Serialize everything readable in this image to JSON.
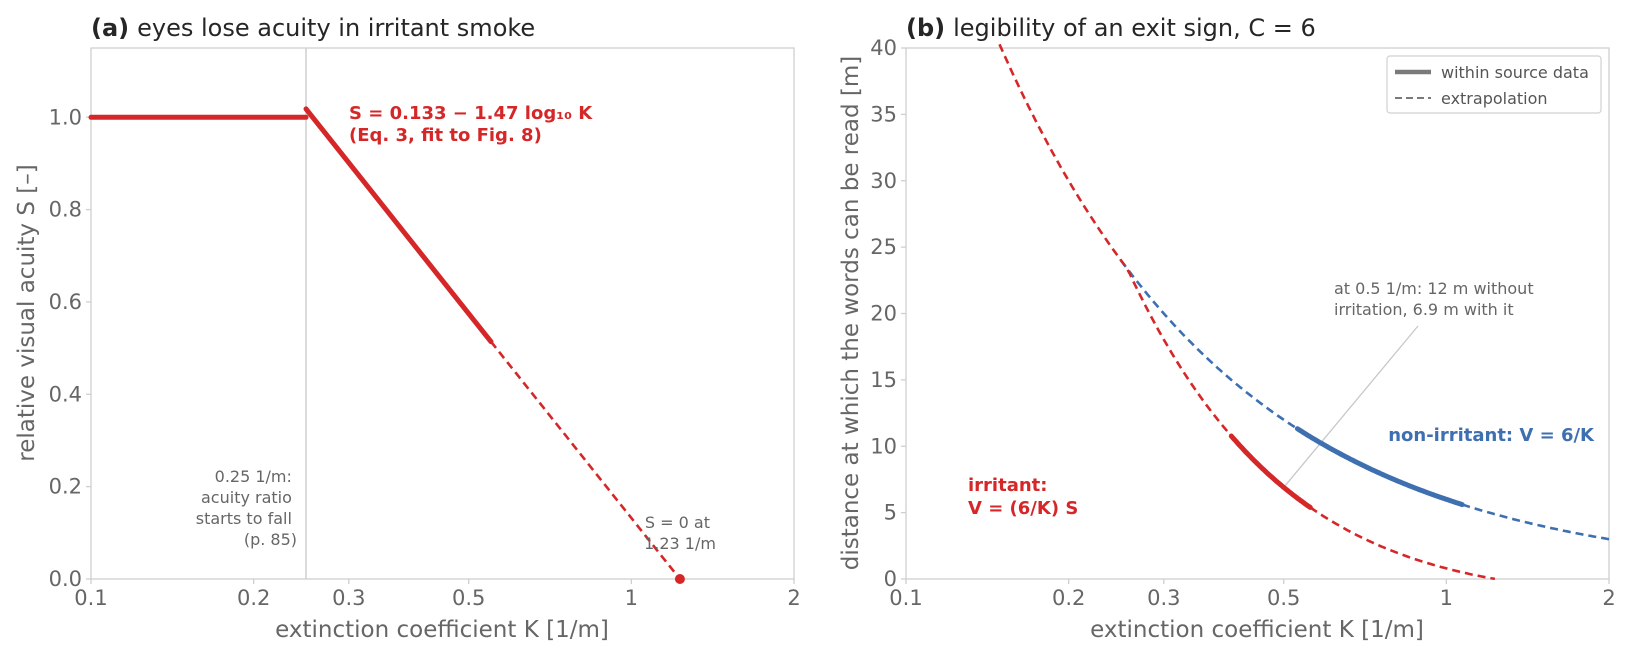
{
  "chart_data": [
    {
      "type": "line",
      "panel": "(a)",
      "title": "eyes lose acuity in irritant smoke",
      "xlabel": "extinction coefficient K [1/m]",
      "ylabel": "relative visual acuity S [–]",
      "xscale": "log",
      "xlim": [
        0.1,
        2
      ],
      "ylim": [
        0,
        1.15
      ],
      "xticks": [
        0.1,
        0.2,
        0.3,
        0.5,
        1,
        2
      ],
      "xtick_labels": [
        "0.1",
        "0.2",
        "0.3",
        "0.5",
        "1",
        "2"
      ],
      "yticks": [
        0,
        0.2,
        0.4,
        0.6,
        0.8,
        1.0
      ],
      "ytick_labels": [
        "0.0",
        "0.2",
        "0.4",
        "0.6",
        "0.8",
        "1.0"
      ],
      "grid": false,
      "color": "#d62728",
      "series": [
        {
          "style": "solid",
          "x": [
            0.1,
            0.25
          ],
          "y": [
            1.0,
            1.0
          ]
        },
        {
          "style": "solid",
          "x": [
            0.25,
            0.55
          ],
          "y": [
            1.018,
            0.514
          ]
        },
        {
          "style": "dashed",
          "x": [
            0.55,
            1.23
          ],
          "y": [
            0.514,
            0.0
          ]
        }
      ],
      "vline_x": 0.25,
      "marker": {
        "x": 1.23,
        "y": 0.0
      },
      "annotations": {
        "equation": [
          "S = 0.133 − 1.47 log₁₀ K",
          "(Eq. 3, fit to Fig. 8)"
        ],
        "threshold": [
          "0.25 1/m:",
          "acuity ratio",
          "starts to fall",
          "(p. 85)"
        ],
        "zero": [
          "S = 0 at",
          "1.23 1/m"
        ]
      }
    },
    {
      "type": "line",
      "panel": "(b)",
      "title": "legibility of an exit sign, C = 6",
      "xlabel": "extinction coefficient K [1/m]",
      "ylabel": "distance at which the words can be read [m]",
      "xscale": "log",
      "xlim": [
        0.1,
        2
      ],
      "ylim": [
        0,
        40
      ],
      "xticks": [
        0.1,
        0.2,
        0.3,
        0.5,
        1,
        2
      ],
      "xtick_labels": [
        "0.1",
        "0.2",
        "0.3",
        "0.5",
        "1",
        "2"
      ],
      "yticks": [
        0,
        5,
        10,
        15,
        20,
        25,
        30,
        35,
        40
      ],
      "ytick_labels": [
        "0",
        "5",
        "10",
        "15",
        "20",
        "25",
        "30",
        "35",
        "40"
      ],
      "grid": false,
      "legend": {
        "placement": "top-right",
        "entries": [
          {
            "label": "within source data",
            "style": "solid"
          },
          {
            "label": "extrapolation",
            "style": "dashed"
          }
        ]
      },
      "series": [
        {
          "label": "non-irritant: V = 6/K",
          "color": "#3e6fb0",
          "formula": "6/K",
          "solid_range": [
            0.53,
            1.07
          ],
          "dashed_ranges": [
            [
              0.25,
              0.53
            ],
            [
              1.07,
              2.0
            ]
          ]
        },
        {
          "label": "irritant: V = (6/K) S",
          "color": "#d62728",
          "formula": "(6/K)*S",
          "solid_range": [
            0.4,
            0.56
          ],
          "dashed_ranges": [
            [
              0.1,
              0.4
            ],
            [
              0.56,
              1.23
            ]
          ]
        }
      ],
      "annotations": {
        "non_irritant": "non-irritant: V = 6/K",
        "irritant": [
          "irritant:",
          "V = (6/K) S"
        ],
        "comparison": [
          "at 0.5 1/m: 12 m without",
          "irritation, 6.9 m with it"
        ],
        "pointer_at": {
          "x": 0.5,
          "y": 6.9
        }
      }
    }
  ]
}
